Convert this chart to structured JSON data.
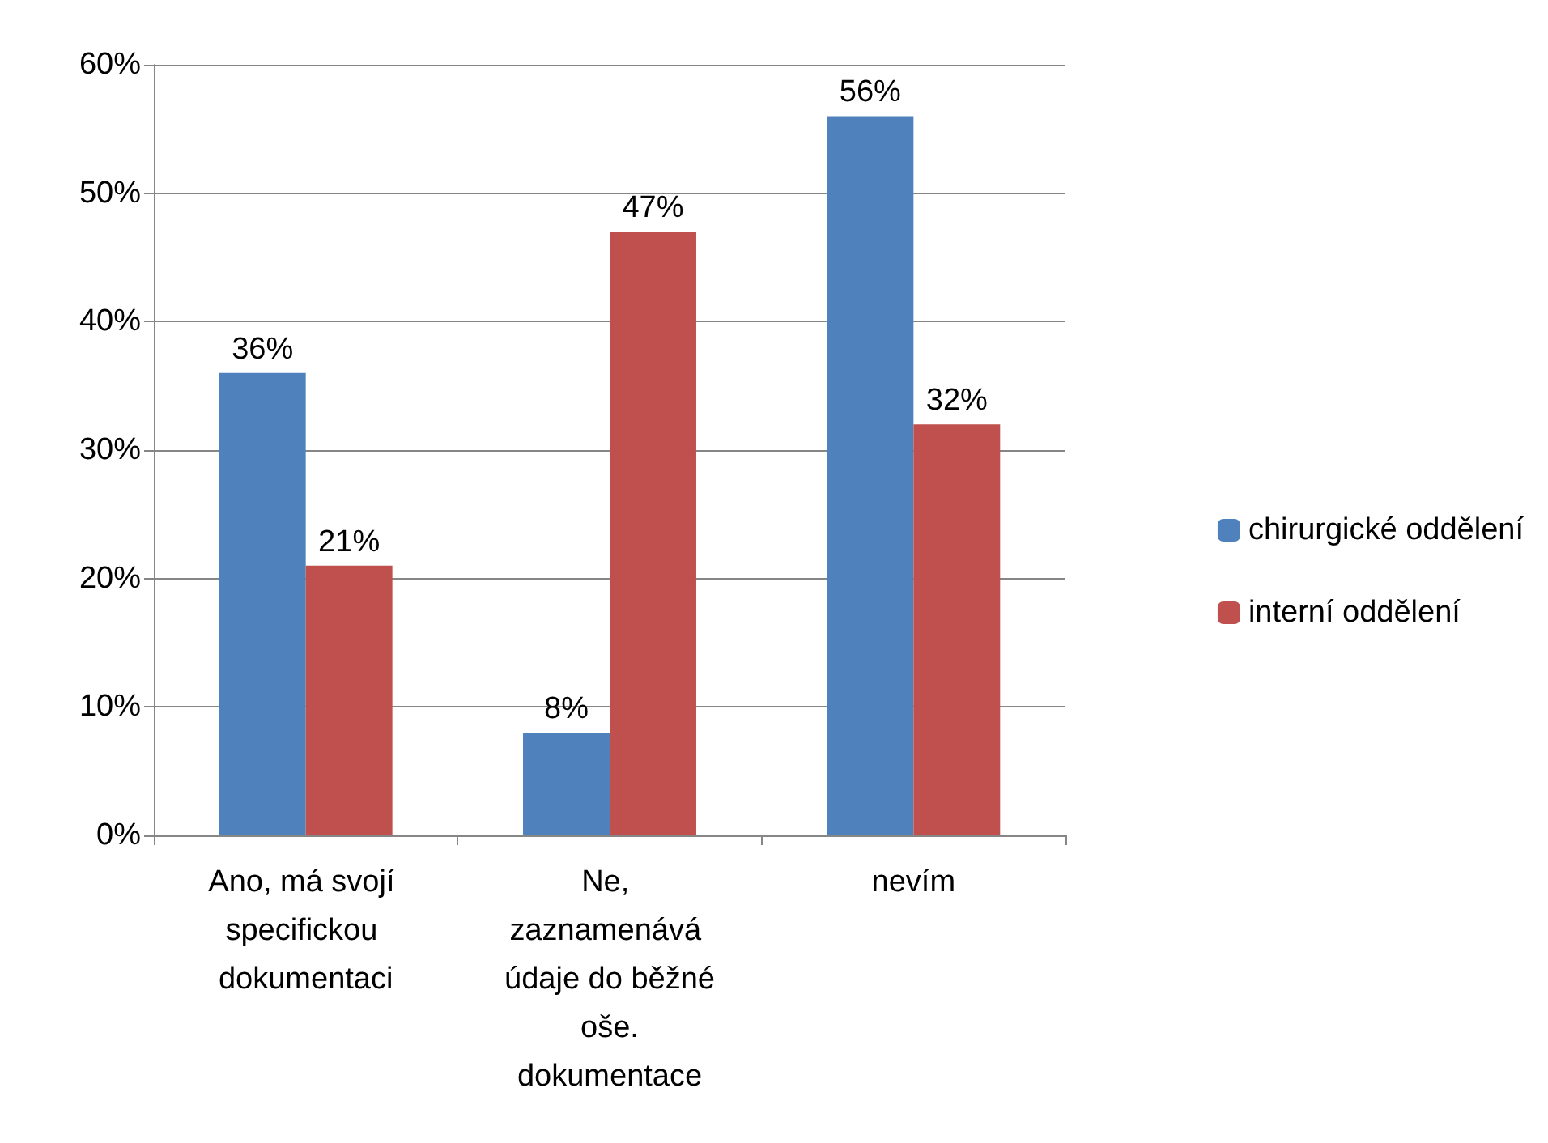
{
  "chart_data": {
    "type": "bar",
    "categories": [
      "Ano, má svojí specifickou dokumentaci",
      "Ne, zaznamenává údaje do běžné oše. dokumentace",
      "nevím"
    ],
    "series": [
      {
        "name": "chirurgické oddělení",
        "color": "#4f81bd",
        "values": [
          36,
          8,
          56
        ],
        "value_labels": [
          "36%",
          "8%",
          "56%"
        ]
      },
      {
        "name": "interní oddělení",
        "color": "#c0504d",
        "values": [
          21,
          47,
          32
        ],
        "value_labels": [
          "21%",
          "47%",
          "32%"
        ]
      }
    ],
    "ylim": [
      0,
      60
    ],
    "yticks": [
      {
        "value": 0,
        "label": "0%"
      },
      {
        "value": 10,
        "label": "10%"
      },
      {
        "value": 20,
        "label": "20%"
      },
      {
        "value": 30,
        "label": "30%"
      },
      {
        "value": 40,
        "label": "40%"
      },
      {
        "value": 50,
        "label": "50%"
      },
      {
        "value": 60,
        "label": "60%"
      }
    ],
    "grid": "y",
    "legend": "right"
  }
}
